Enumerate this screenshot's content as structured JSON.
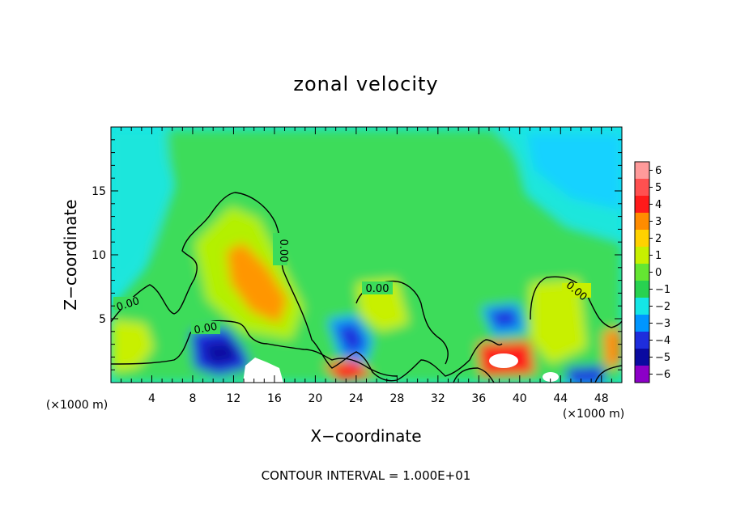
{
  "chart_data": {
    "type": "heatmap",
    "title": "zonal velocity",
    "xlabel": "X−coordinate",
    "ylabel": "Z−coordinate",
    "x_unit": "(×1000 m)",
    "xlim": [
      0,
      50
    ],
    "ylim": [
      0,
      20
    ],
    "x_ticks": [
      4,
      8,
      12,
      16,
      20,
      24,
      28,
      32,
      36,
      40,
      44,
      48
    ],
    "x_tick_labels": [
      "4",
      "8",
      "12",
      "16",
      "20",
      "24",
      "28",
      "32",
      "36",
      "40",
      "44",
      "48"
    ],
    "y_ticks": [
      5,
      10,
      15
    ],
    "y_tick_labels": [
      "5",
      "10",
      "15"
    ],
    "footer": "CONTOUR INTERVAL = 1.000E+01",
    "colorbar": {
      "levels": [
        6,
        5,
        4,
        3,
        2,
        1,
        0,
        -1,
        -2,
        -3,
        -4,
        -5,
        -6
      ],
      "labels": [
        "6",
        "5",
        "4",
        "3",
        "2",
        "1",
        "0",
        "−1",
        "−2",
        "−3",
        "−4",
        "−5",
        "−6"
      ],
      "colors": [
        "#ff9a9a",
        "#ff5050",
        "#ff1a1a",
        "#ff8c00",
        "#ffd200",
        "#c8f000",
        "#64e632",
        "#28d250",
        "#14e6e6",
        "#0096ff",
        "#1e2ddc",
        "#0a0aa0",
        "#8c00c8"
      ]
    },
    "contour_labels": [
      "0.00",
      "0.00",
      "0.00",
      "0.00",
      "0.00"
    ],
    "background_color": "#14e6e6"
  }
}
